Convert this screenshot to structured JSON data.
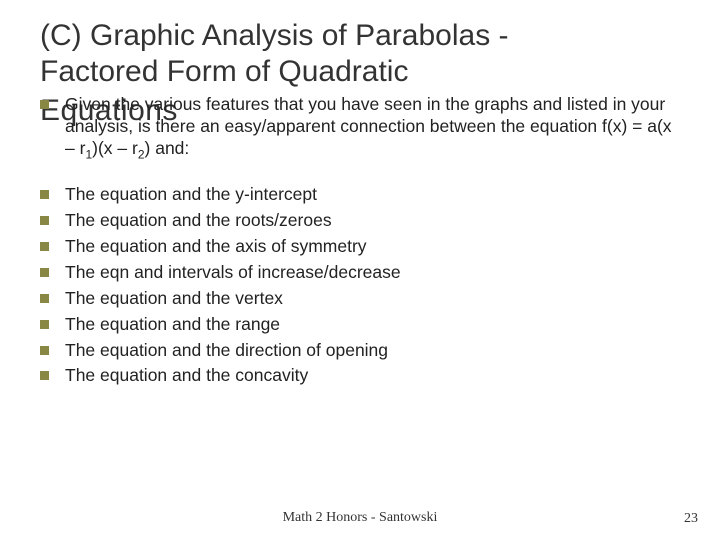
{
  "title_lines": [
    "(C) Graphic Analysis of Parabolas  -",
    "Factored Form of Quadratic"
  ],
  "title_overlay": "Equations",
  "intro": {
    "pre": "Given the various features that you have seen in the graphs and listed in your analysis, is there an easy/apparent connection between the equation f(x) = a(x – r",
    "sub1": "1",
    "mid": ")(x – r",
    "sub2": "2",
    "post": ") and:"
  },
  "items": [
    "The equation and the y-intercept",
    "The equation and the roots/zeroes",
    "The equation and the axis of symmetry",
    "The eqn and intervals of increase/decrease",
    "The equation and the vertex",
    "The equation and the range",
    "The equation and the direction of opening",
    "The equation and the concavity"
  ],
  "footer": "Math 2 Honors - Santowski",
  "page": "23",
  "colors": {
    "bullet": "#888844",
    "text": "#222222",
    "title": "#333333"
  },
  "fonts": {
    "title_size_pt": 30,
    "body_size_pt": 17,
    "footer_family": "Times New Roman"
  }
}
